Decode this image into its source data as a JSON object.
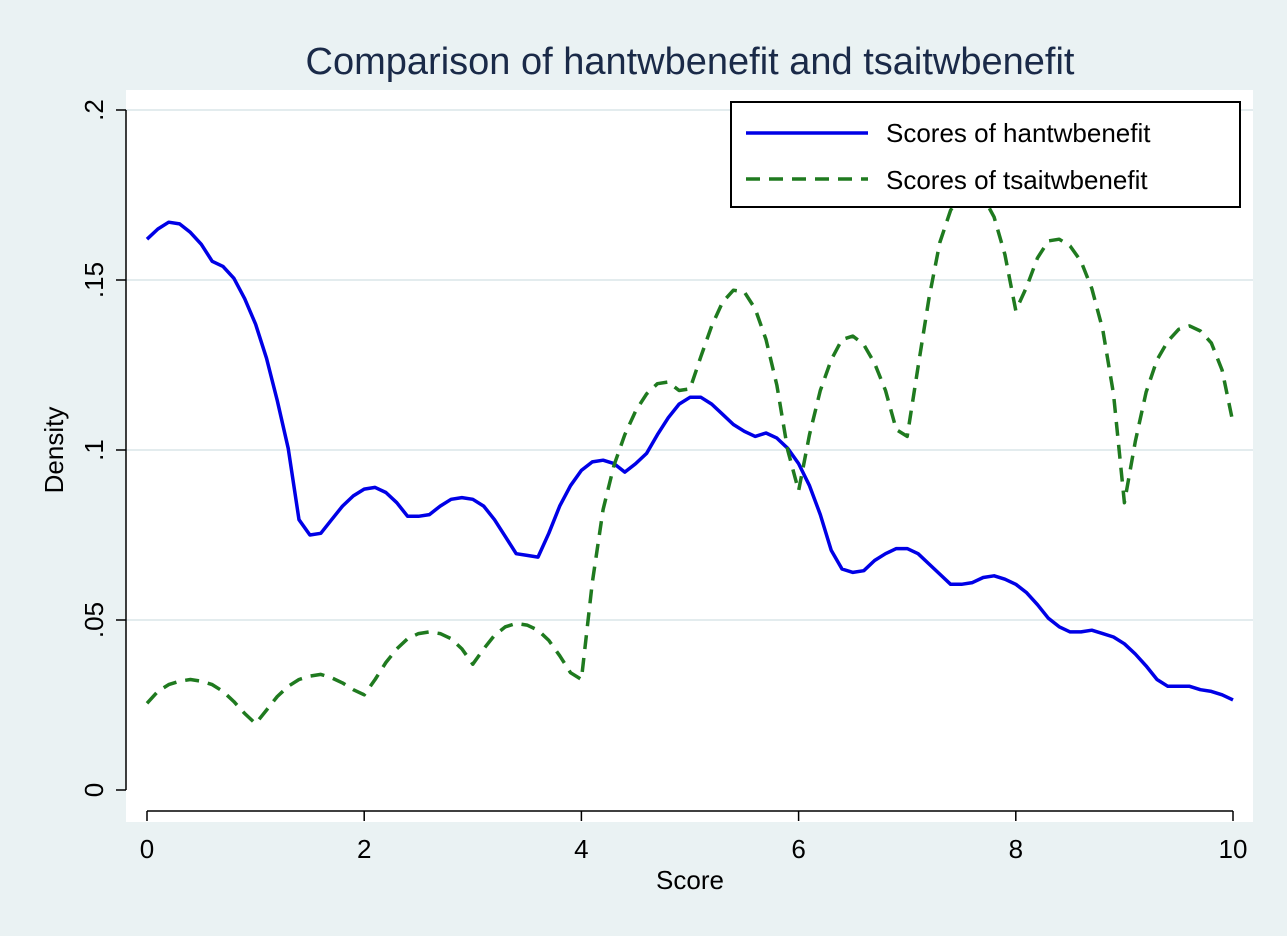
{
  "chart_data": {
    "type": "line",
    "title": "Comparison of hantwbenefit and tsaitwbenefit",
    "xlabel": "Score",
    "ylabel": "Density",
    "xlim": [
      0,
      10
    ],
    "ylim": [
      0,
      0.2
    ],
    "x_ticks": [
      {
        "value": 0,
        "label": "0"
      },
      {
        "value": 2,
        "label": "2"
      },
      {
        "value": 4,
        "label": "4"
      },
      {
        "value": 6,
        "label": "6"
      },
      {
        "value": 8,
        "label": "8"
      },
      {
        "value": 10,
        "label": "10"
      }
    ],
    "y_ticks": [
      {
        "value": 0,
        "label": "0"
      },
      {
        "value": 0.05,
        "label": ".05"
      },
      {
        "value": 0.1,
        "label": ".1"
      },
      {
        "value": 0.15,
        "label": ".15"
      },
      {
        "value": 0.2,
        "label": ".2"
      }
    ],
    "grid": "horizontal",
    "legend_position": "top-right",
    "colors": {
      "background": "#eaf2f3",
      "plot_background": "#ffffff",
      "grid": "#e3ecee",
      "title": "#1a2a48"
    },
    "series": [
      {
        "name": "Scores of hantwbenefit",
        "color": "#0000e6",
        "style": "solid",
        "x": [
          0,
          0.1,
          0.2,
          0.3,
          0.4,
          0.5,
          0.6,
          0.7,
          0.8,
          0.9,
          1.0,
          1.1,
          1.2,
          1.3,
          1.4,
          1.5,
          1.6,
          1.7,
          1.8,
          1.9,
          2.0,
          2.1,
          2.2,
          2.3,
          2.4,
          2.5,
          2.6,
          2.7,
          2.8,
          2.9,
          3.0,
          3.1,
          3.2,
          3.3,
          3.4,
          3.5,
          3.6,
          3.7,
          3.8,
          3.9,
          4.0,
          4.1,
          4.2,
          4.3,
          4.4,
          4.5,
          4.6,
          4.7,
          4.8,
          4.9,
          5.0,
          5.1,
          5.2,
          5.3,
          5.4,
          5.5,
          5.6,
          5.7,
          5.8,
          5.9,
          6.0,
          6.1,
          6.2,
          6.3,
          6.4,
          6.5,
          6.6,
          6.7,
          6.8,
          6.9,
          7.0,
          7.1,
          7.2,
          7.3,
          7.4,
          7.5,
          7.6,
          7.7,
          7.8,
          7.9,
          8.0,
          8.1,
          8.2,
          8.3,
          8.4,
          8.5,
          8.6,
          8.7,
          8.8,
          8.9,
          9.0,
          9.1,
          9.2,
          9.3,
          9.4,
          9.5,
          9.6,
          9.7,
          9.8,
          9.9,
          10.0
        ],
        "y": [
          0.162,
          0.165,
          0.167,
          0.1665,
          0.164,
          0.1605,
          0.1555,
          0.154,
          0.1505,
          0.1445,
          0.137,
          0.127,
          0.1145,
          0.1005,
          0.0795,
          0.075,
          0.0755,
          0.0795,
          0.0835,
          0.0865,
          0.0885,
          0.089,
          0.0875,
          0.0845,
          0.0805,
          0.0805,
          0.081,
          0.0835,
          0.0855,
          0.086,
          0.0855,
          0.0835,
          0.0795,
          0.0745,
          0.0695,
          0.069,
          0.0685,
          0.0755,
          0.0835,
          0.0895,
          0.094,
          0.0965,
          0.097,
          0.096,
          0.0935,
          0.096,
          0.099,
          0.1045,
          0.1095,
          0.1135,
          0.1155,
          0.1155,
          0.1135,
          0.1105,
          0.1075,
          0.1055,
          0.104,
          0.105,
          0.1035,
          0.1005,
          0.096,
          0.0895,
          0.081,
          0.0705,
          0.065,
          0.064,
          0.0645,
          0.0675,
          0.0695,
          0.071,
          0.071,
          0.0695,
          0.0665,
          0.0635,
          0.0605,
          0.0605,
          0.061,
          0.0625,
          0.063,
          0.062,
          0.0605,
          0.058,
          0.0545,
          0.0505,
          0.048,
          0.0465,
          0.0465,
          0.047,
          0.046,
          0.045,
          0.043,
          0.04,
          0.0365,
          0.0325,
          0.0305,
          0.0305,
          0.0305,
          0.0295,
          0.029,
          0.028,
          0.0265
        ]
      },
      {
        "name": "Scores of tsaitwbenefit",
        "color": "#1f7a1f",
        "style": "dashed",
        "x": [
          0,
          0.1,
          0.2,
          0.3,
          0.4,
          0.5,
          0.6,
          0.7,
          0.8,
          0.9,
          1.0,
          1.1,
          1.2,
          1.3,
          1.4,
          1.5,
          1.6,
          1.7,
          1.8,
          1.9,
          2.0,
          2.1,
          2.2,
          2.3,
          2.4,
          2.5,
          2.6,
          2.7,
          2.8,
          2.9,
          3.0,
          3.1,
          3.2,
          3.3,
          3.4,
          3.5,
          3.6,
          3.7,
          3.8,
          3.9,
          4.0,
          4.1,
          4.2,
          4.3,
          4.4,
          4.5,
          4.6,
          4.7,
          4.8,
          4.9,
          5.0,
          5.1,
          5.2,
          5.3,
          5.4,
          5.5,
          5.6,
          5.7,
          5.8,
          5.9,
          6.0,
          6.1,
          6.2,
          6.3,
          6.4,
          6.5,
          6.6,
          6.7,
          6.8,
          6.9,
          7.0,
          7.1,
          7.2,
          7.3,
          7.4,
          7.5,
          7.6,
          7.7,
          7.8,
          7.9,
          8.0,
          8.1,
          8.2,
          8.3,
          8.4,
          8.5,
          8.6,
          8.7,
          8.8,
          8.9,
          9.0,
          9.1,
          9.2,
          9.3,
          9.4,
          9.5,
          9.6,
          9.7,
          9.8,
          9.9,
          10.0
        ],
        "y": [
          0.0255,
          0.029,
          0.031,
          0.032,
          0.0325,
          0.032,
          0.031,
          0.029,
          0.026,
          0.0225,
          0.0195,
          0.0235,
          0.0275,
          0.0305,
          0.0325,
          0.0335,
          0.034,
          0.033,
          0.0315,
          0.0295,
          0.028,
          0.0325,
          0.0375,
          0.0415,
          0.0445,
          0.046,
          0.0465,
          0.046,
          0.0445,
          0.0415,
          0.037,
          0.0415,
          0.0455,
          0.048,
          0.049,
          0.0485,
          0.047,
          0.044,
          0.0395,
          0.0345,
          0.0325,
          0.061,
          0.0825,
          0.0955,
          0.1045,
          0.1115,
          0.1165,
          0.1195,
          0.12,
          0.1175,
          0.118,
          0.1275,
          0.1365,
          0.1435,
          0.147,
          0.1465,
          0.1415,
          0.1325,
          0.119,
          0.1,
          0.088,
          0.1045,
          0.1175,
          0.1265,
          0.1325,
          0.1335,
          0.131,
          0.1255,
          0.1175,
          0.106,
          0.104,
          0.1245,
          0.1445,
          0.161,
          0.1705,
          0.1755,
          0.1765,
          0.1745,
          0.1685,
          0.1575,
          0.141,
          0.148,
          0.1565,
          0.1615,
          0.162,
          0.16,
          0.1555,
          0.1475,
          0.1355,
          0.1165,
          0.0845,
          0.1025,
          0.117,
          0.1265,
          0.132,
          0.1355,
          0.1365,
          0.135,
          0.1315,
          0.1235,
          0.108
        ]
      }
    ]
  }
}
